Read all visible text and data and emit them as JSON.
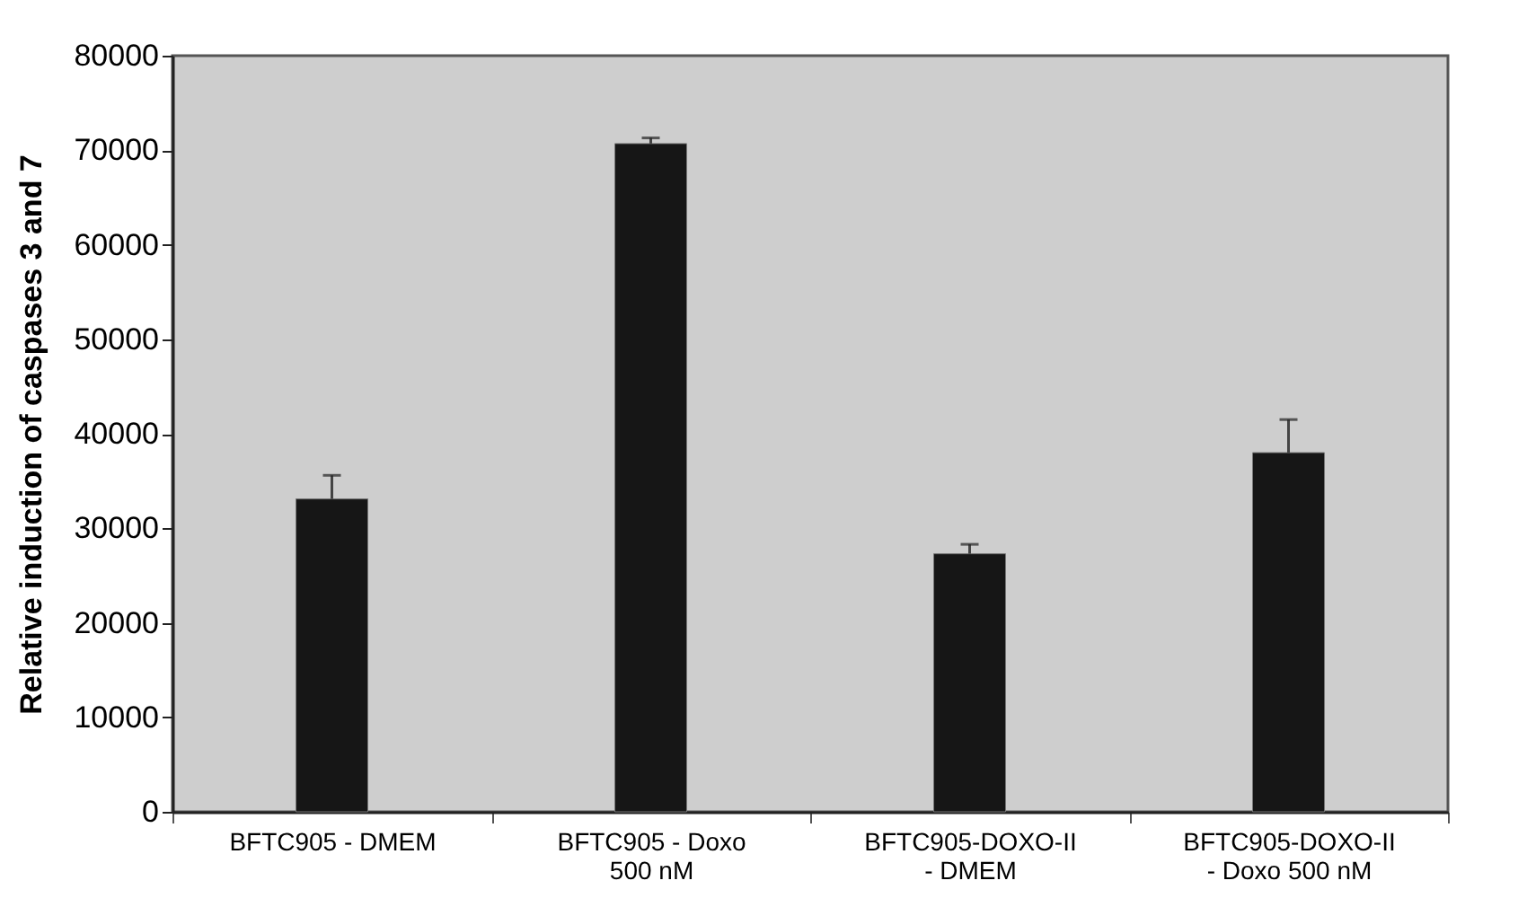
{
  "chart_data": {
    "type": "bar",
    "categories": [
      "BFTC905 - DMEM",
      "BFTC905 - Doxo 500 nM",
      "BFTC905-DOXO-II - DMEM",
      "BFTC905-DOXO-II - Doxo 500 nM"
    ],
    "values": [
      33100,
      70700,
      27300,
      38000
    ],
    "errors": [
      2500,
      600,
      1000,
      3500
    ],
    "color": "#161616",
    "ylabel": "Relative induction of caspases 3 and 7",
    "ylim": [
      0,
      80000
    ],
    "yticks": [
      0,
      10000,
      20000,
      30000,
      40000,
      50000,
      60000,
      70000,
      80000
    ],
    "grid": false
  }
}
